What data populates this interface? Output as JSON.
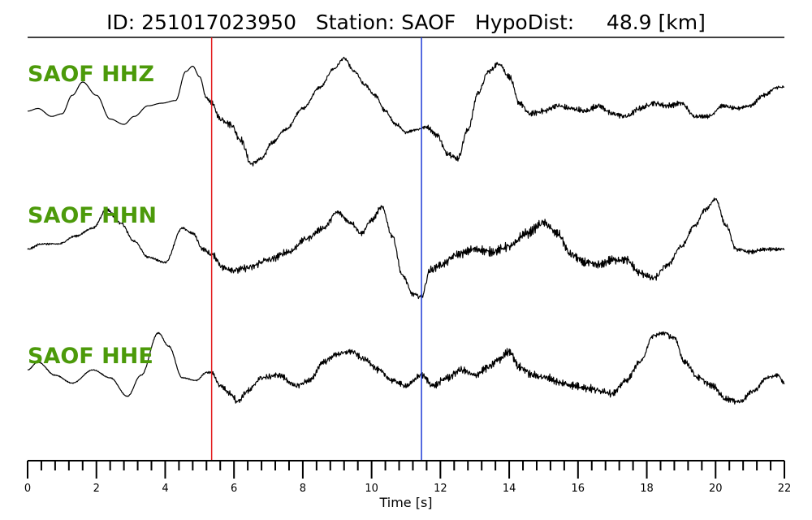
{
  "chart_data": {
    "type": "line",
    "title": "ID: 251017023950   Station: SAOF   HypoDist:     48.9 [km]",
    "xlabel": "Time [s]",
    "xlim": [
      0,
      22
    ],
    "x_ticks": [
      0,
      2,
      4,
      6,
      8,
      10,
      12,
      14,
      16,
      18,
      20,
      22
    ],
    "minor_tick_step": 0.4,
    "grid": false,
    "markers": [
      {
        "time": 5.35,
        "color": "#e31a1c"
      },
      {
        "time": 11.45,
        "color": "#1f3bd6"
      }
    ],
    "series": [
      {
        "name": "SAOF HHZ",
        "x": [
          0,
          0.3,
          0.7,
          1.0,
          1.3,
          1.6,
          2.0,
          2.4,
          2.8,
          3.1,
          3.5,
          3.9,
          4.3,
          4.6,
          4.8,
          5.0,
          5.2,
          5.35,
          5.6,
          5.9,
          6.2,
          6.5,
          6.8,
          7.1,
          7.5,
          8.0,
          8.5,
          8.9,
          9.2,
          9.5,
          9.8,
          10.1,
          10.4,
          10.7,
          11.0,
          11.3,
          11.6,
          11.9,
          12.2,
          12.5,
          12.8,
          13.1,
          13.4,
          13.7,
          14.0,
          14.3,
          14.6,
          15.0,
          15.4,
          15.8,
          16.2,
          16.6,
          17.0,
          17.4,
          17.8,
          18.2,
          18.6,
          19.0,
          19.4,
          19.8,
          20.2,
          20.6,
          21.0,
          21.4,
          21.8,
          22.0
        ],
        "values": [
          0.05,
          0.1,
          -0.05,
          0.0,
          0.35,
          0.6,
          0.35,
          -0.1,
          -0.2,
          -0.05,
          0.15,
          0.2,
          0.25,
          0.8,
          0.9,
          0.7,
          0.3,
          0.2,
          -0.1,
          -0.2,
          -0.5,
          -0.95,
          -0.85,
          -0.55,
          -0.3,
          0.1,
          0.5,
          0.85,
          1.05,
          0.8,
          0.55,
          0.35,
          0.05,
          -0.2,
          -0.35,
          -0.3,
          -0.25,
          -0.4,
          -0.75,
          -0.85,
          -0.3,
          0.4,
          0.8,
          0.95,
          0.7,
          0.2,
          0.0,
          0.05,
          0.15,
          0.1,
          0.05,
          0.15,
          0.0,
          -0.05,
          0.1,
          0.2,
          0.15,
          0.2,
          -0.05,
          -0.05,
          0.15,
          0.1,
          0.15,
          0.35,
          0.5,
          0.5
        ],
        "noise": [
          0,
          0,
          0,
          0,
          0,
          0,
          0,
          0,
          0,
          0,
          0,
          0,
          0,
          0,
          0,
          0,
          0.03,
          0.05,
          0.07,
          0.07,
          0.07,
          0.07,
          0.05,
          0.04,
          0.03,
          0.03,
          0.03,
          0.03,
          0.03,
          0.03,
          0.04,
          0.04,
          0.04,
          0.04,
          0.03,
          0.03,
          0.04,
          0.06,
          0.07,
          0.07,
          0.06,
          0.05,
          0.05,
          0.06,
          0.06,
          0.06,
          0.06,
          0.06,
          0.06,
          0.06,
          0.06,
          0.06,
          0.06,
          0.06,
          0.06,
          0.06,
          0.06,
          0.05,
          0.04,
          0.04,
          0.04,
          0.04,
          0.04,
          0.04,
          0.04,
          0.04
        ]
      },
      {
        "name": "SAOF HHN",
        "x": [
          0,
          0.4,
          0.9,
          1.4,
          1.9,
          2.3,
          2.7,
          3.1,
          3.5,
          4.0,
          4.5,
          4.8,
          5.1,
          5.35,
          5.7,
          6.0,
          6.4,
          7.0,
          7.6,
          8.1,
          8.6,
          9.0,
          9.4,
          9.7,
          10.0,
          10.3,
          10.6,
          10.9,
          11.2,
          11.45,
          11.7,
          12.0,
          12.5,
          13.0,
          13.5,
          14.0,
          14.5,
          15.0,
          15.4,
          15.8,
          16.2,
          16.6,
          17.0,
          17.4,
          17.8,
          18.2,
          18.6,
          19.0,
          19.4,
          19.7,
          20.0,
          20.3,
          20.6,
          21.0,
          21.5,
          22.0
        ],
        "values": [
          0.05,
          0.15,
          0.15,
          0.3,
          0.45,
          0.8,
          0.55,
          0.2,
          -0.1,
          -0.2,
          0.45,
          0.35,
          0.05,
          -0.05,
          -0.3,
          -0.35,
          -0.3,
          -0.15,
          0.0,
          0.25,
          0.45,
          0.75,
          0.55,
          0.35,
          0.6,
          0.85,
          0.3,
          -0.45,
          -0.8,
          -0.85,
          -0.35,
          -0.25,
          -0.05,
          0.05,
          0.0,
          0.1,
          0.35,
          0.55,
          0.35,
          -0.05,
          -0.2,
          -0.25,
          -0.15,
          -0.15,
          -0.4,
          -0.5,
          -0.25,
          0.1,
          0.5,
          0.8,
          1.0,
          0.5,
          0.05,
          0.0,
          0.05,
          0.05
        ],
        "noise": [
          0.02,
          0.02,
          0.02,
          0.02,
          0.02,
          0.03,
          0.03,
          0.02,
          0.02,
          0.02,
          0.02,
          0.03,
          0.04,
          0.06,
          0.08,
          0.08,
          0.08,
          0.08,
          0.07,
          0.06,
          0.06,
          0.06,
          0.05,
          0.05,
          0.05,
          0.05,
          0.05,
          0.05,
          0.05,
          0.06,
          0.08,
          0.08,
          0.08,
          0.09,
          0.09,
          0.09,
          0.09,
          0.09,
          0.09,
          0.09,
          0.09,
          0.09,
          0.09,
          0.09,
          0.08,
          0.07,
          0.06,
          0.05,
          0.04,
          0.04,
          0.04,
          0.04,
          0.04,
          0.04,
          0.04,
          0.04
        ]
      },
      {
        "name": "SAOF HHE",
        "x": [
          0,
          0.3,
          0.8,
          1.3,
          1.9,
          2.4,
          2.9,
          3.3,
          3.8,
          4.1,
          4.5,
          4.9,
          5.2,
          5.35,
          5.6,
          5.9,
          6.1,
          6.4,
          6.8,
          7.3,
          7.8,
          8.2,
          8.6,
          9.0,
          9.4,
          9.8,
          10.2,
          10.6,
          11.0,
          11.45,
          11.8,
          12.2,
          12.6,
          13.0,
          13.4,
          13.7,
          14.0,
          14.3,
          14.7,
          15.1,
          15.5,
          15.9,
          16.3,
          16.7,
          17.0,
          17.4,
          17.8,
          18.2,
          18.5,
          18.8,
          19.1,
          19.5,
          19.9,
          20.3,
          20.7,
          21.1,
          21.5,
          21.8,
          22.0
        ],
        "values": [
          0.15,
          0.3,
          0.05,
          -0.1,
          0.15,
          0.0,
          -0.35,
          0.05,
          0.85,
          0.6,
          0.0,
          -0.05,
          0.1,
          0.1,
          -0.15,
          -0.3,
          -0.45,
          -0.25,
          0.0,
          0.05,
          -0.15,
          -0.05,
          0.3,
          0.45,
          0.5,
          0.35,
          0.15,
          -0.05,
          -0.15,
          0.05,
          -0.15,
          0.0,
          0.15,
          0.05,
          0.2,
          0.35,
          0.5,
          0.2,
          0.05,
          0.0,
          -0.1,
          -0.15,
          -0.2,
          -0.25,
          -0.3,
          -0.05,
          0.3,
          0.8,
          0.85,
          0.75,
          0.3,
          0.0,
          -0.15,
          -0.4,
          -0.45,
          -0.25,
          0.0,
          0.05,
          -0.1
        ],
        "noise": [
          0.01,
          0.01,
          0.01,
          0.01,
          0.01,
          0.01,
          0.01,
          0.01,
          0.01,
          0.01,
          0.01,
          0.01,
          0.02,
          0.03,
          0.05,
          0.06,
          0.07,
          0.07,
          0.06,
          0.06,
          0.06,
          0.06,
          0.06,
          0.06,
          0.06,
          0.06,
          0.06,
          0.06,
          0.06,
          0.06,
          0.07,
          0.08,
          0.08,
          0.08,
          0.08,
          0.08,
          0.08,
          0.08,
          0.08,
          0.08,
          0.08,
          0.08,
          0.08,
          0.08,
          0.07,
          0.06,
          0.05,
          0.05,
          0.06,
          0.06,
          0.06,
          0.06,
          0.06,
          0.06,
          0.06,
          0.05,
          0.04,
          0.04,
          0.04
        ]
      }
    ],
    "colors": {
      "trace": "#000000",
      "label": "#4c9a0a"
    }
  }
}
